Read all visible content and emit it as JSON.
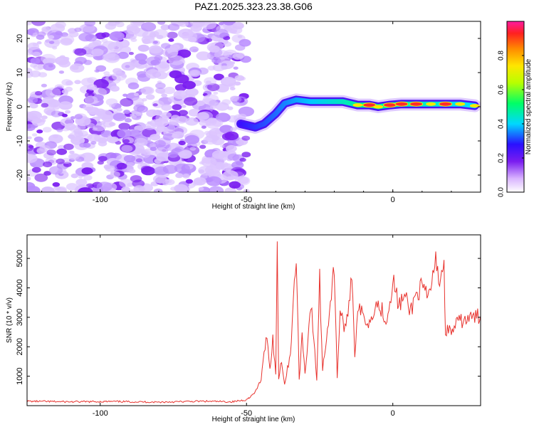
{
  "title": "PAZ1.2025.323.23.38.G06",
  "colors": {
    "snr_line": "#e8332e",
    "frame": "#000000",
    "ridge_weak": "#7a1cf0",
    "ridge_strong": "#ff2a2a"
  },
  "chart_data": [
    {
      "type": "heatmap",
      "name": "spectrogram",
      "title": "PAZ1.2025.323.23.38.G06",
      "xlabel": "Height of straight line (km)",
      "ylabel": "Frequency (Hz)",
      "xlim": [
        -125,
        30
      ],
      "ylim": [
        -25,
        25
      ],
      "xticks": [
        -100,
        -50,
        0
      ],
      "xtick_labels": [
        "-100",
        "-50",
        "0"
      ],
      "yticks": [
        -20,
        -10,
        0,
        10,
        20
      ],
      "ytick_labels": [
        "-20",
        "-10",
        "0",
        "10",
        "20"
      ],
      "noise_region_x": [
        -125,
        -50
      ],
      "signal_ridge": [
        {
          "x": -52,
          "freq": -5,
          "amp": 0.25
        },
        {
          "x": -47,
          "freq": -6,
          "amp": 0.3
        },
        {
          "x": -44,
          "freq": -5,
          "amp": 0.3
        },
        {
          "x": -40,
          "freq": -2,
          "amp": 0.3
        },
        {
          "x": -37,
          "freq": 1,
          "amp": 0.3
        },
        {
          "x": -33,
          "freq": 2,
          "amp": 0.35
        },
        {
          "x": -28,
          "freq": 1.5,
          "amp": 0.4
        },
        {
          "x": -22,
          "freq": 1.5,
          "amp": 0.45
        },
        {
          "x": -17,
          "freq": 1.5,
          "amp": 0.5
        },
        {
          "x": -12,
          "freq": 0.5,
          "amp": 0.75
        },
        {
          "x": -8,
          "freq": 0.5,
          "amp": 0.9
        },
        {
          "x": -5,
          "freq": 0,
          "amp": 0.7
        },
        {
          "x": -1,
          "freq": 0.5,
          "amp": 0.9
        },
        {
          "x": 3,
          "freq": 0.8,
          "amp": 0.95
        },
        {
          "x": 8,
          "freq": 0.8,
          "amp": 0.95
        },
        {
          "x": 13,
          "freq": 0.8,
          "amp": 0.7
        },
        {
          "x": 18,
          "freq": 0.8,
          "amp": 0.9
        },
        {
          "x": 23,
          "freq": 0.8,
          "amp": 0.6
        },
        {
          "x": 28,
          "freq": 0.3,
          "amp": 0.8
        }
      ]
    },
    {
      "type": "colorbar",
      "name": "colorbar",
      "label": "Normalized spectral amplitude",
      "range": [
        0,
        1
      ],
      "ticks": [
        0.0,
        0.2,
        0.4,
        0.6,
        0.8
      ],
      "tick_labels": [
        "0.0",
        "0.2",
        "0.4",
        "0.6",
        "0.8"
      ]
    },
    {
      "type": "line",
      "name": "snr",
      "xlabel": "Height of straight line (km)",
      "ylabel": "SNR (10 * v/v)",
      "xlim": [
        -125,
        30
      ],
      "ylim": [
        0,
        5800
      ],
      "xticks": [
        -100,
        -50,
        0
      ],
      "xtick_labels": [
        "-100",
        "-50",
        "0"
      ],
      "yticks": [
        1000,
        2000,
        3000,
        4000,
        5000
      ],
      "ytick_labels": [
        "1000",
        "2000",
        "3000",
        "4000",
        "5000"
      ],
      "series": [
        {
          "name": "SNR",
          "x": [
            -125,
            -110,
            -95,
            -80,
            -65,
            -55,
            -50,
            -47,
            -45,
            -43,
            -42,
            -41,
            -40,
            -39.5,
            -39,
            -38,
            -37,
            -35,
            -33,
            -32,
            -31,
            -30,
            -28,
            -26,
            -25,
            -24,
            -22,
            -20,
            -19,
            -18,
            -16,
            -14,
            -13,
            -12,
            -10,
            -8,
            -6,
            -4,
            -2,
            0,
            2,
            4,
            6,
            8,
            10,
            12,
            14,
            15,
            16,
            17,
            17.5,
            18,
            20,
            22,
            24,
            26,
            28,
            30
          ],
          "y": [
            150,
            130,
            140,
            120,
            150,
            130,
            200,
            450,
            900,
            2500,
            1200,
            2300,
            1000,
            5800,
            900,
            1600,
            700,
            1800,
            5100,
            900,
            2400,
            1100,
            3500,
            900,
            4300,
            1200,
            2900,
            4700,
            1000,
            3200,
            2500,
            4600,
            1700,
            3400,
            3000,
            2800,
            3500,
            3300,
            2900,
            4300,
            3400,
            3700,
            3200,
            3800,
            4000,
            3600,
            4500,
            5000,
            4100,
            4800,
            4600,
            2600,
            2500,
            2800,
            2900,
            2950,
            3000,
            3050
          ]
        }
      ]
    }
  ]
}
